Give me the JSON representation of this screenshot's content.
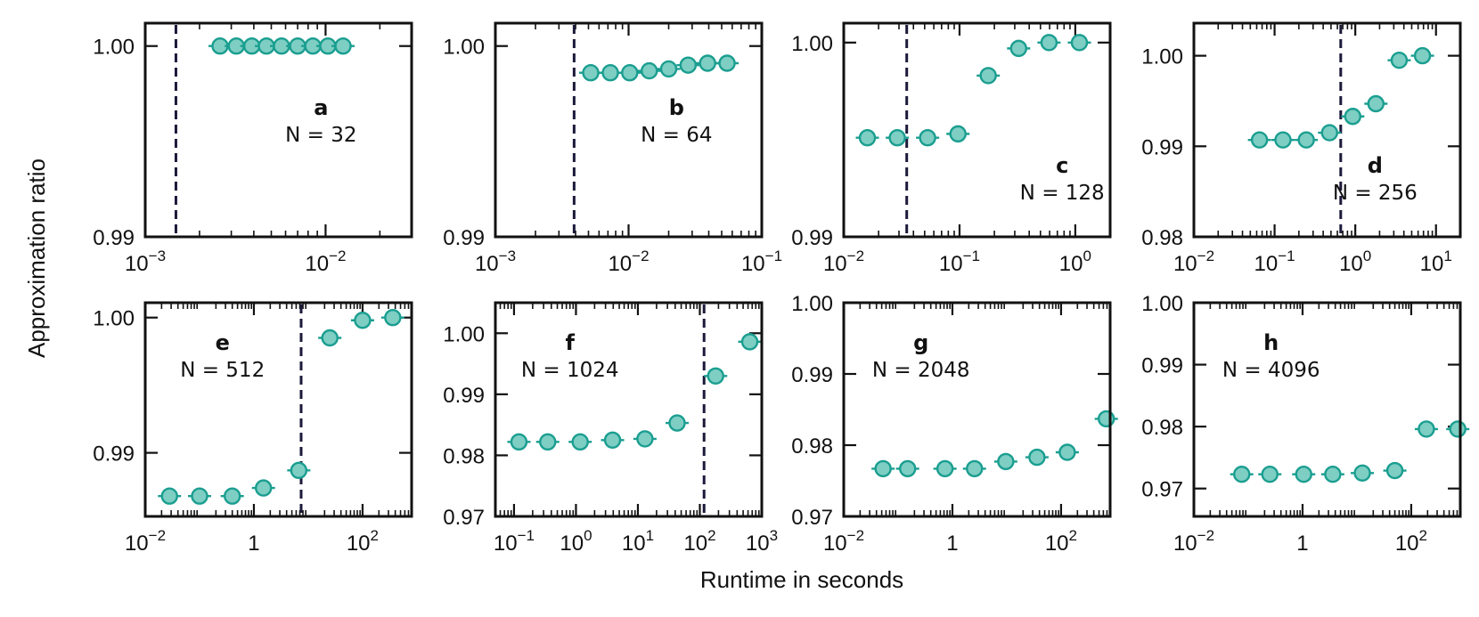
{
  "figure": {
    "ylabel": "Approximation ratio",
    "xlabel": "Runtime in seconds",
    "marker_fill": "#7ecec3",
    "marker_edge": "#1a9e90",
    "cutoff_color": "#1c1a3a"
  },
  "chart_data": [
    {
      "type": "scatter",
      "panel": "a",
      "n_label": "N = 32",
      "xscale": "log",
      "xlim": [
        0.001,
        0.03
      ],
      "ylim": [
        0.99,
        1.0012
      ],
      "xticks": [
        {
          "v": 0.001,
          "b": "10",
          "e": "−3"
        },
        {
          "v": 0.01,
          "b": "10",
          "e": "−2"
        }
      ],
      "yticks": [
        {
          "v": 0.99,
          "t": "0.99"
        },
        {
          "v": 1.0,
          "t": "1.00"
        }
      ],
      "cutoff": 0.00148,
      "x": [
        0.0026,
        0.0032,
        0.0039,
        0.0047,
        0.0057,
        0.007,
        0.0085,
        0.0103,
        0.0125
      ],
      "y": [
        1.0,
        1.0,
        1.0,
        1.0,
        1.0,
        1.0,
        1.0,
        1.0,
        1.0
      ]
    },
    {
      "type": "scatter",
      "panel": "b",
      "n_label": "N = 64",
      "xscale": "log",
      "xlim": [
        0.001,
        0.1
      ],
      "ylim": [
        0.99,
        1.0012
      ],
      "xticks": [
        {
          "v": 0.001,
          "b": "10",
          "e": "−3"
        },
        {
          "v": 0.01,
          "b": "10",
          "e": "−2"
        },
        {
          "v": 0.1,
          "b": "10",
          "e": "−1"
        }
      ],
      "yticks": [
        {
          "v": 0.99,
          "t": "0.99"
        },
        {
          "v": 1.0,
          "t": "1.00"
        }
      ],
      "cutoff": 0.0039,
      "x": [
        0.0052,
        0.0073,
        0.0102,
        0.0143,
        0.02,
        0.028,
        0.0392,
        0.0549
      ],
      "y": [
        0.9986,
        0.9986,
        0.9986,
        0.9987,
        0.9988,
        0.999,
        0.9991,
        0.9991
      ]
    },
    {
      "type": "scatter",
      "panel": "c",
      "n_label": "N = 128",
      "xscale": "log",
      "xlim": [
        0.01,
        2.0
      ],
      "ylim": [
        0.99,
        1.001
      ],
      "xticks": [
        {
          "v": 0.01,
          "b": "10",
          "e": "−2"
        },
        {
          "v": 0.1,
          "b": "10",
          "e": "−1"
        },
        {
          "v": 1,
          "b": "10",
          "e": "0"
        }
      ],
      "yticks": [
        {
          "v": 0.99,
          "t": "0.99"
        },
        {
          "v": 1.0,
          "t": "1.00"
        }
      ],
      "cutoff": 0.035,
      "x": [
        0.016,
        0.029,
        0.053,
        0.097,
        0.177,
        0.324,
        0.593,
        1.085
      ],
      "y": [
        0.9951,
        0.9951,
        0.9951,
        0.9953,
        0.9983,
        0.9997,
        1.0,
        1.0
      ]
    },
    {
      "type": "scatter",
      "panel": "d",
      "n_label": "N = 256",
      "xscale": "log",
      "xlim": [
        0.01,
        20
      ],
      "ylim": [
        0.98,
        1.0036
      ],
      "xticks": [
        {
          "v": 0.01,
          "b": "10",
          "e": "−2"
        },
        {
          "v": 0.1,
          "b": "10",
          "e": "−1"
        },
        {
          "v": 1,
          "b": "10",
          "e": "0"
        },
        {
          "v": 10,
          "b": "10",
          "e": "1"
        }
      ],
      "yticks": [
        {
          "v": 0.98,
          "t": "0.98"
        },
        {
          "v": 0.99,
          "t": "0.99"
        },
        {
          "v": 1.0,
          "t": "1.00"
        }
      ],
      "cutoff": 0.66,
      "x": [
        0.065,
        0.127,
        0.247,
        0.48,
        0.93,
        1.8,
        3.5,
        6.8
      ],
      "y": [
        0.9907,
        0.9907,
        0.9907,
        0.9915,
        0.9933,
        0.9947,
        0.9995,
        1.0
      ]
    },
    {
      "type": "scatter",
      "panel": "e",
      "n_label": "N = 512",
      "xscale": "log",
      "xlim": [
        0.01,
        800
      ],
      "ylim": [
        0.9853,
        1.0011
      ],
      "xticks": [
        {
          "v": 0.01,
          "b": "10",
          "e": "−2"
        },
        {
          "v": 1,
          "t": "1"
        },
        {
          "v": 100,
          "b": "10",
          "e": "2"
        }
      ],
      "yticks": [
        {
          "v": 0.99,
          "t": "0.99"
        },
        {
          "v": 1.0,
          "t": "1.00"
        }
      ],
      "cutoff": 7.4,
      "x": [
        0.028,
        0.1,
        0.4,
        1.5,
        6.7,
        25,
        100,
        360
      ],
      "y": [
        0.9868,
        0.9868,
        0.9868,
        0.9874,
        0.9887,
        0.9985,
        0.9998,
        1.0
      ]
    },
    {
      "type": "scatter",
      "panel": "f",
      "n_label": "N = 1024",
      "xscale": "log",
      "xlim": [
        0.05,
        1000
      ],
      "ylim": [
        0.97,
        1.005
      ],
      "xticks": [
        {
          "v": 0.1,
          "b": "10",
          "e": "−1"
        },
        {
          "v": 1,
          "b": "10",
          "e": "0"
        },
        {
          "v": 10,
          "b": "10",
          "e": "1"
        },
        {
          "v": 100,
          "b": "10",
          "e": "2"
        },
        {
          "v": 1000,
          "b": "10",
          "e": "3"
        }
      ],
      "yticks": [
        {
          "v": 0.97,
          "t": "0.97"
        },
        {
          "v": 0.98,
          "t": "0.98"
        },
        {
          "v": 0.99,
          "t": "0.99"
        },
        {
          "v": 1.0,
          "t": "1.00"
        }
      ],
      "cutoff": 117,
      "x": [
        0.12,
        0.35,
        1.17,
        3.9,
        13,
        43,
        180,
        640
      ],
      "y": [
        0.9822,
        0.9822,
        0.9822,
        0.9825,
        0.9827,
        0.9853,
        0.993,
        0.9986
      ]
    },
    {
      "type": "scatter",
      "panel": "g",
      "n_label": "N = 2048",
      "xscale": "log",
      "xlim": [
        0.01,
        800
      ],
      "ylim": [
        0.97,
        1.0
      ],
      "xticks": [
        {
          "v": 0.01,
          "b": "10",
          "e": "−2"
        },
        {
          "v": 1,
          "t": "1"
        },
        {
          "v": 100,
          "b": "10",
          "e": "2"
        }
      ],
      "yticks": [
        {
          "v": 0.97,
          "t": "0.97"
        },
        {
          "v": 0.98,
          "t": "0.98"
        },
        {
          "v": 0.99,
          "t": "0.99"
        },
        {
          "v": 1.0,
          "t": "1.00"
        }
      ],
      "cutoff": null,
      "x": [
        0.053,
        0.15,
        0.73,
        2.55,
        9.6,
        36,
        130,
        680
      ],
      "y": [
        0.9767,
        0.9767,
        0.9767,
        0.9767,
        0.9777,
        0.9783,
        0.979,
        0.9837
      ]
    },
    {
      "type": "scatter",
      "panel": "h",
      "n_label": "N = 4096",
      "xscale": "log",
      "xlim": [
        0.01,
        800
      ],
      "ylim": [
        0.9655,
        1.0
      ],
      "xticks": [
        {
          "v": 0.01,
          "b": "10",
          "e": "−2"
        },
        {
          "v": 1,
          "t": "1"
        },
        {
          "v": 100,
          "b": "10",
          "e": "2"
        }
      ],
      "yticks": [
        {
          "v": 0.97,
          "t": "0.97"
        },
        {
          "v": 0.98,
          "t": "0.98"
        },
        {
          "v": 0.99,
          "t": "0.99"
        },
        {
          "v": 1.0,
          "t": "1.00"
        }
      ],
      "cutoff": null,
      "x": [
        0.076,
        0.25,
        1.05,
        3.6,
        12.6,
        50,
        190,
        720
      ],
      "y": [
        0.9723,
        0.9723,
        0.9723,
        0.9723,
        0.9725,
        0.9729,
        0.9796,
        0.9796
      ]
    }
  ]
}
